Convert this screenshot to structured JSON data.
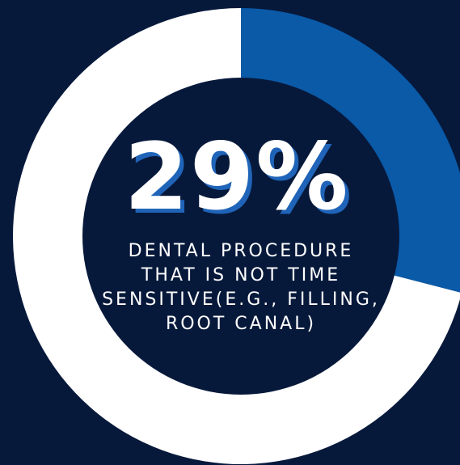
{
  "chart_data": {
    "type": "pie",
    "value_label": "29%",
    "values": [
      29,
      71
    ],
    "caption": "Dental procedure that is not time sensitive(e.g., filling, root canal)"
  },
  "colors": {
    "background": "#07193b",
    "highlight": "#0a5aa8",
    "remainder": "#ffffff",
    "center_disc": "#07193b",
    "value_shadow": "#1f64b8"
  }
}
